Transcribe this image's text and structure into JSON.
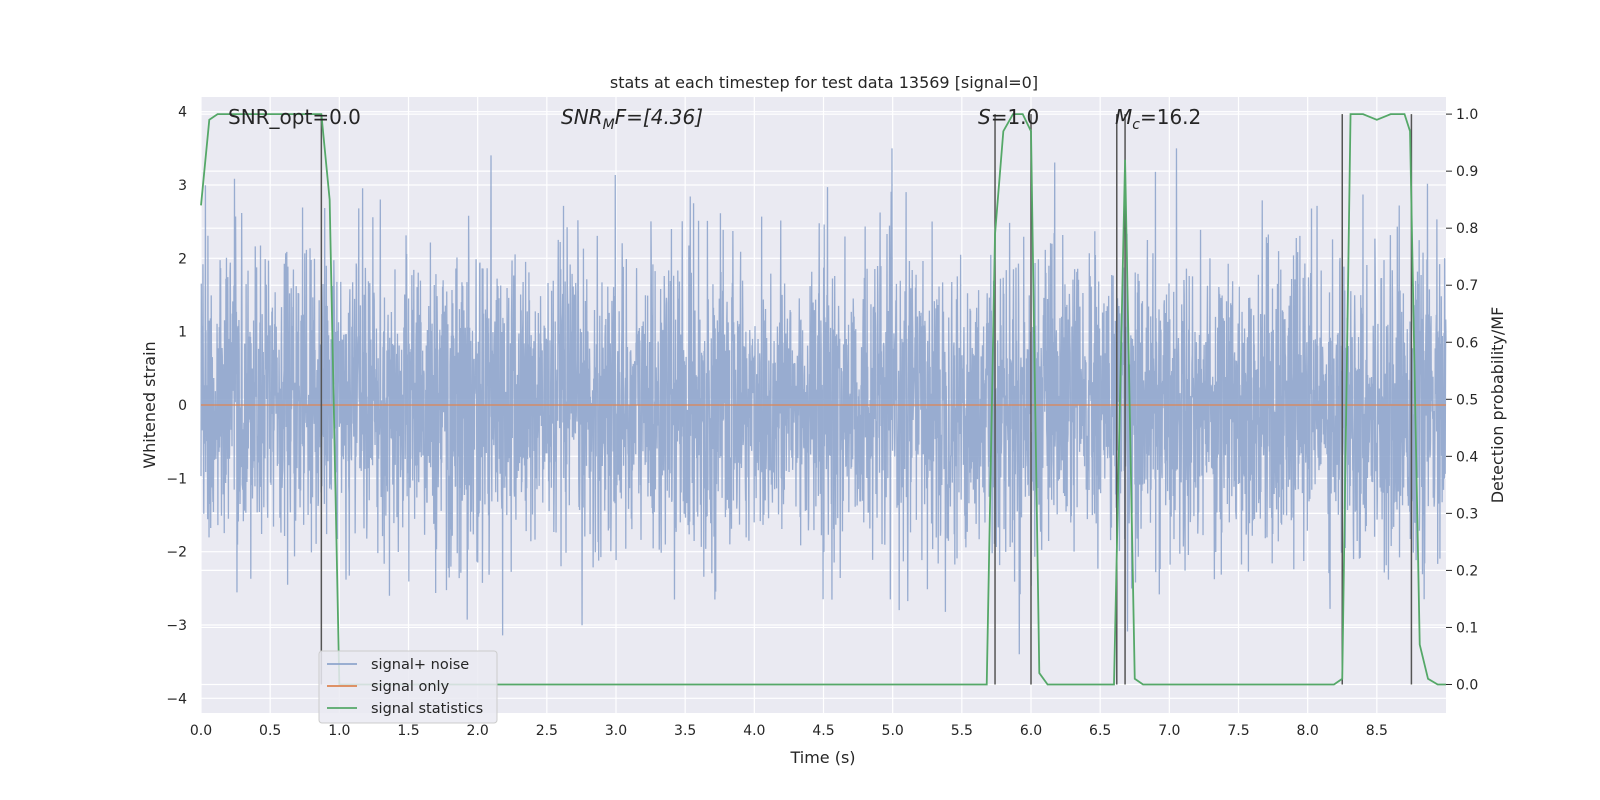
{
  "chart_data": {
    "type": "line",
    "title": "stats at each timestep for test data 13569 [signal=0]",
    "xlabel": "Time (s)",
    "ylabel_left": "Whitened strain",
    "ylabel_right": "Detection probability/MF",
    "xlim": [
      0.0,
      9.0
    ],
    "ylim_left": [
      -4.2,
      4.2
    ],
    "ylim_right": [
      -0.05,
      1.03
    ],
    "x_ticks": [
      "0.0",
      "0.5",
      "1.0",
      "1.5",
      "2.0",
      "2.5",
      "3.0",
      "3.5",
      "4.0",
      "4.5",
      "5.0",
      "5.5",
      "6.0",
      "6.5",
      "7.0",
      "7.5",
      "8.0",
      "8.5"
    ],
    "y_ticks_left": [
      "4",
      "3",
      "2",
      "1",
      "0",
      "−1",
      "−2",
      "−3",
      "−4"
    ],
    "y_ticks_right": [
      "1.0",
      "0.9",
      "0.8",
      "0.7",
      "0.6",
      "0.5",
      "0.4",
      "0.3",
      "0.2",
      "0.1",
      "0.0"
    ],
    "grid": true,
    "legend": {
      "placement": "lower-left",
      "entries": [
        {
          "name": "signal+ noise",
          "color": "#8fa5cc"
        },
        {
          "name": "signal only",
          "color": "#dd8452"
        },
        {
          "name": "signal statistics",
          "color": "#55a868"
        }
      ]
    },
    "annotations": {
      "snr_opt": "SNR_opt=0.0",
      "snr_mf_main": "SNR",
      "snr_mf_sub": "M",
      "snr_mf_rest": "F=[4.36]",
      "s_main": "S",
      "s_rest": "=1.0",
      "mc_main": "M",
      "mc_sub": "c",
      "mc_rest": "=16.2"
    },
    "series": [
      {
        "name": "signal+ noise",
        "axis": "left",
        "description_values": "whitened noise samples, approx amplitude range -3.8 to 3.5",
        "peak_max": 3.5,
        "peak_min": -3.8
      },
      {
        "name": "signal only",
        "axis": "left",
        "x": [
          0.0,
          9.0
        ],
        "y": [
          0.0,
          0.0
        ]
      },
      {
        "name": "signal statistics",
        "axis": "right",
        "x": [
          0.0,
          0.06,
          0.12,
          0.3,
          0.5,
          0.7,
          0.87,
          0.93,
          1.0,
          1.06,
          2.0,
          3.0,
          4.0,
          5.0,
          5.5,
          5.68,
          5.74,
          5.8,
          5.87,
          5.94,
          6.0,
          6.06,
          6.12,
          6.2,
          6.4,
          6.55,
          6.6,
          6.68,
          6.75,
          6.81,
          6.9,
          7.0,
          7.1,
          7.5,
          8.0,
          8.19,
          8.25,
          8.31,
          8.4,
          8.5,
          8.6,
          8.7,
          8.74,
          8.81,
          8.87,
          8.94,
          9.0
        ],
        "y": [
          0.84,
          0.99,
          1.0,
          1.0,
          1.0,
          1.0,
          1.0,
          0.85,
          0.0,
          0.0,
          0.0,
          0.0,
          0.0,
          0.0,
          0.0,
          0.0,
          0.79,
          0.97,
          1.0,
          1.0,
          0.97,
          0.02,
          0.0,
          0.0,
          0.0,
          0.0,
          0.0,
          0.92,
          0.01,
          0.0,
          0.0,
          0.0,
          0.0,
          0.0,
          0.0,
          0.0,
          0.01,
          1.0,
          1.0,
          0.99,
          1.0,
          1.0,
          0.97,
          0.07,
          0.01,
          0.0,
          0.0
        ]
      }
    ],
    "vertical_markers_x": [
      0.87,
      5.74,
      6.0,
      6.62,
      6.68,
      8.25,
      8.75
    ]
  }
}
